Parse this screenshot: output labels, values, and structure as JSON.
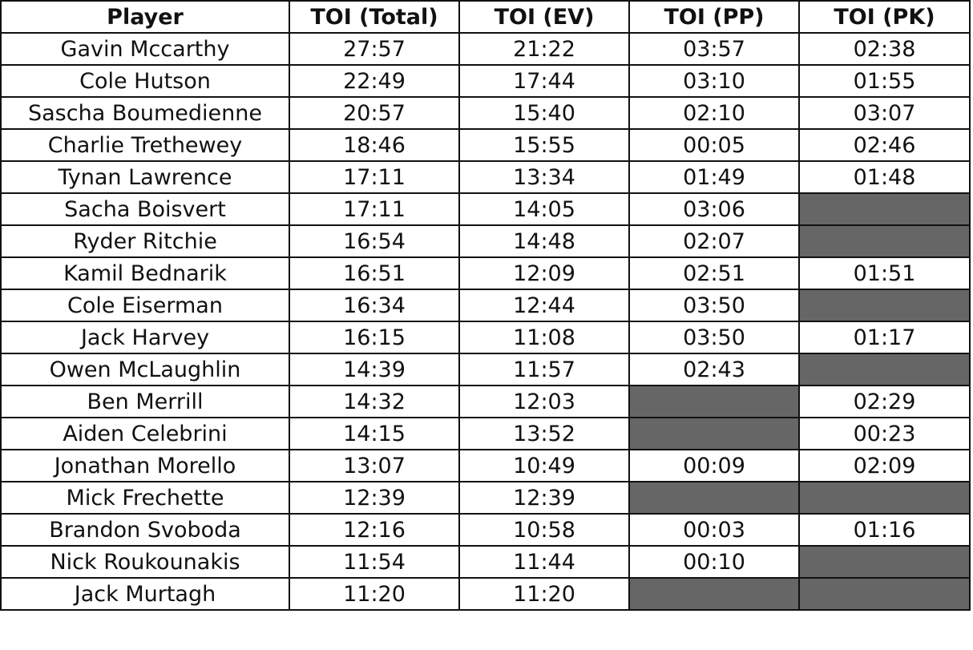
{
  "table": {
    "header": [
      "Player",
      "TOI (Total)",
      "TOI (EV)",
      "TOI (PP)",
      "TOI (PK)"
    ],
    "rows": [
      [
        "Gavin Mccarthy",
        "27:57",
        "21:22",
        "03:57",
        "02:38"
      ],
      [
        "Cole Hutson",
        "22:49",
        "17:44",
        "03:10",
        "01:55"
      ],
      [
        "Sascha Boumedienne",
        "20:57",
        "15:40",
        "02:10",
        "03:07"
      ],
      [
        "Charlie Trethewey",
        "18:46",
        "15:55",
        "00:05",
        "02:46"
      ],
      [
        "Tynan Lawrence",
        "17:11",
        "13:34",
        "01:49",
        "01:48"
      ],
      [
        "Sacha Boisvert",
        "17:11",
        "14:05",
        "03:06",
        null
      ],
      [
        "Ryder Ritchie",
        "16:54",
        "14:48",
        "02:07",
        null
      ],
      [
        "Kamil Bednarik",
        "16:51",
        "12:09",
        "02:51",
        "01:51"
      ],
      [
        "Cole Eiserman",
        "16:34",
        "12:44",
        "03:50",
        null
      ],
      [
        "Jack Harvey",
        "16:15",
        "11:08",
        "03:50",
        "01:17"
      ],
      [
        "Owen McLaughlin",
        "14:39",
        "11:57",
        "02:43",
        null
      ],
      [
        "Ben Merrill",
        "14:32",
        "12:03",
        null,
        "02:29"
      ],
      [
        "Aiden Celebrini",
        "14:15",
        "13:52",
        null,
        "00:23"
      ],
      [
        "Jonathan Morello",
        "13:07",
        "10:49",
        "00:09",
        "02:09"
      ],
      [
        "Mick Frechette",
        "12:39",
        "12:39",
        null,
        null
      ],
      [
        "Brandon Svoboda",
        "12:16",
        "10:58",
        "00:03",
        "01:16"
      ],
      [
        "Nick Roukounakis",
        "11:54",
        "11:44",
        "00:10",
        null
      ],
      [
        "Jack Murtagh",
        "11:20",
        "11:20",
        null,
        null
      ]
    ]
  }
}
